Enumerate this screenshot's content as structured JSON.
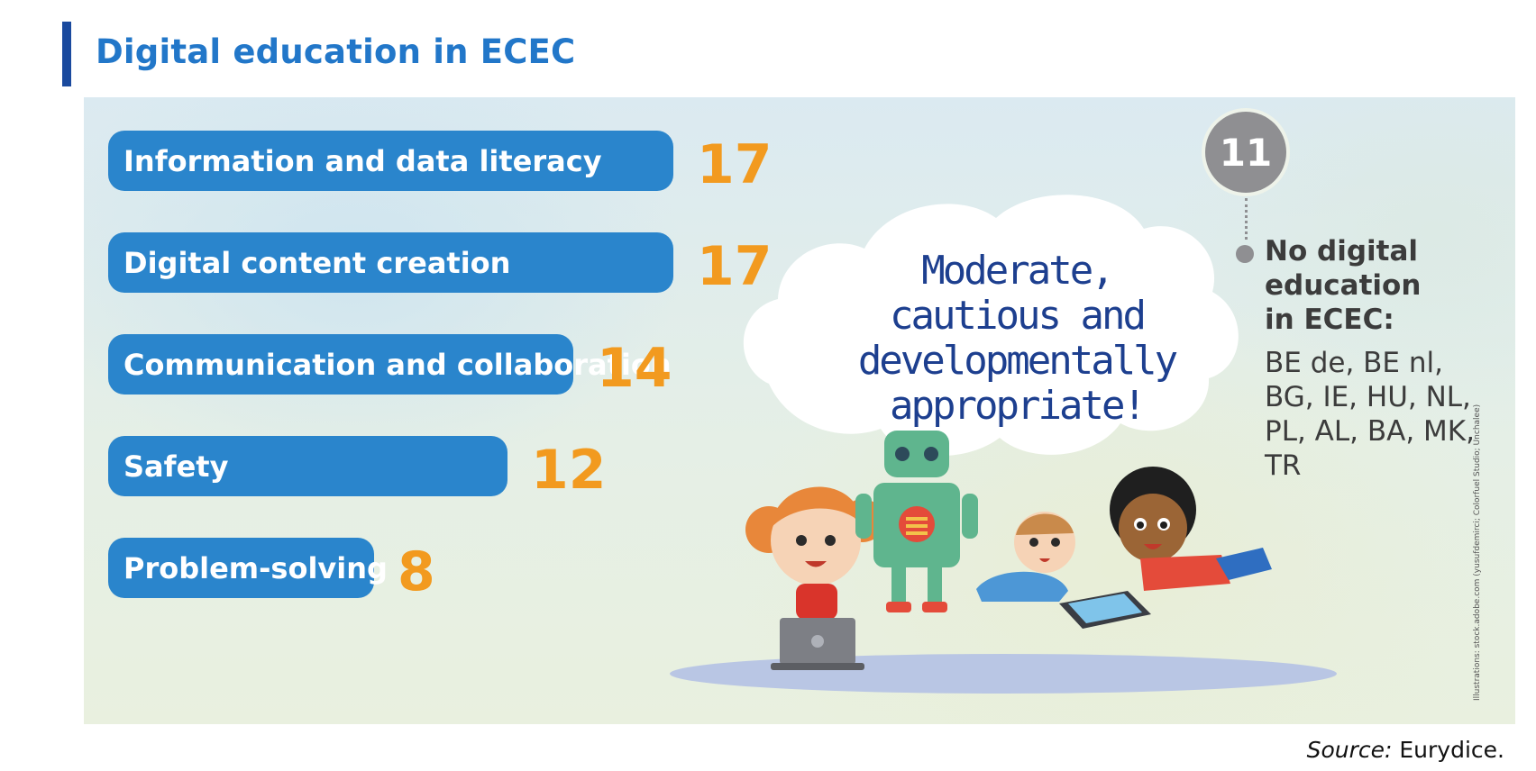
{
  "title": "Digital education in ECEC",
  "chart_data": {
    "type": "bar",
    "orientation": "horizontal",
    "categories": [
      "Information and data literacy",
      "Digital content creation",
      "Communication and collaboration",
      "Safety",
      "Problem-solving"
    ],
    "values": [
      17,
      17,
      14,
      12,
      8
    ],
    "bar_color": "#2a85cc",
    "value_label_color": "#f29a1f"
  },
  "speech_bubble": "Moderate, cautious and developmentally appropriate!",
  "no_digital": {
    "count": "11",
    "heading": "No digital education in ECEC:",
    "countries": "BE de, BE nl, BG, IE, HU, NL, PL, AL, BA, MK, TR"
  },
  "illustration_credit": "Illustrations: stock.adobe.com (yusufdemirci; Colorfuel Studio; Unchalee)",
  "source_prefix": "Source:",
  "source_text": "Eurydice.",
  "colors": {
    "title": "#2277c9",
    "title_accent": "#1a4a9e",
    "badge": "#8f8f92",
    "bubble_text": "#1d3f8f"
  }
}
